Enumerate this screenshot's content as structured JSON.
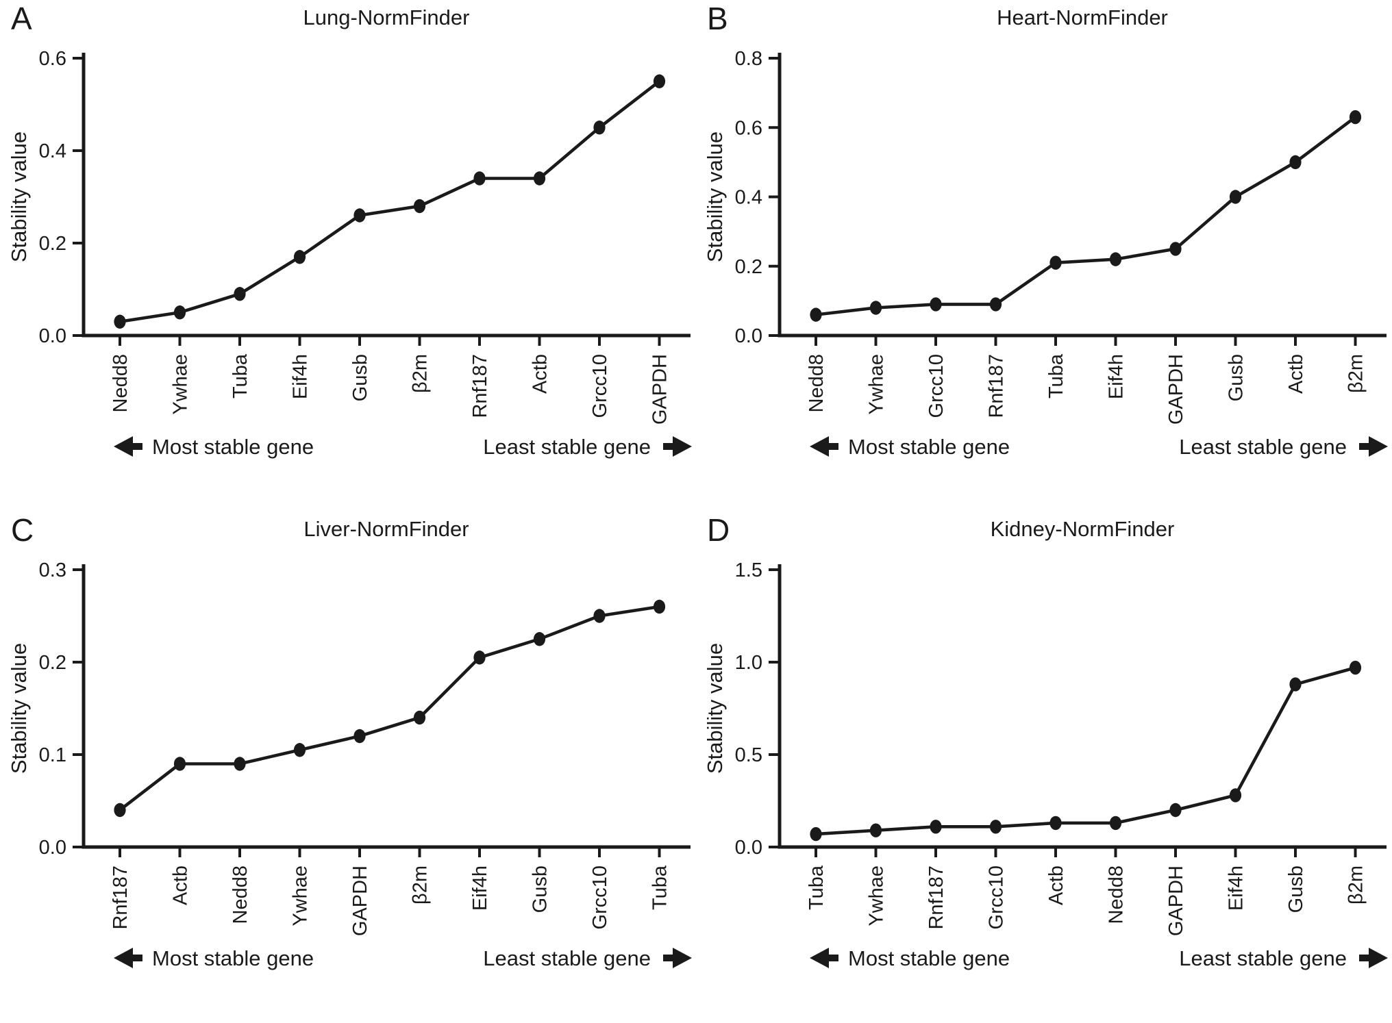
{
  "figure": {
    "background": "#ffffff",
    "ink": "#1a1a1a",
    "arrows": {
      "left": "◄",
      "right": "►"
    }
  },
  "chart_data": [
    {
      "type": "line",
      "panel_letter": "A",
      "title": "Lung-NormFinder",
      "ylabel": "Stability value",
      "xlabel": "",
      "ylim": [
        0,
        0.6
      ],
      "yticks": [
        0.0,
        0.2,
        0.4,
        0.6
      ],
      "categories": [
        "Nedd8",
        "Ywhae",
        "Tuba",
        "Eif4h",
        "Gusb",
        "β2m",
        "Rnf187",
        "Actb",
        "Grcc10",
        "GAPDH"
      ],
      "values": [
        0.03,
        0.05,
        0.09,
        0.17,
        0.26,
        0.28,
        0.34,
        0.34,
        0.45,
        0.55
      ],
      "annotations": {
        "most_stable": "Most stable gene",
        "least_stable": "Least stable gene"
      }
    },
    {
      "type": "line",
      "panel_letter": "B",
      "title": "Heart-NormFinder",
      "ylabel": "Stability value",
      "xlabel": "",
      "ylim": [
        0,
        0.8
      ],
      "yticks": [
        0.0,
        0.2,
        0.4,
        0.6,
        0.8
      ],
      "categories": [
        "Nedd8",
        "Ywhae",
        "Grcc10",
        "Rnf187",
        "Tuba",
        "Eif4h",
        "GAPDH",
        "Gusb",
        "Actb",
        "β2m"
      ],
      "values": [
        0.06,
        0.08,
        0.09,
        0.09,
        0.21,
        0.22,
        0.25,
        0.4,
        0.5,
        0.63
      ],
      "annotations": {
        "most_stable": "Most stable gene",
        "least_stable": "Least stable gene"
      }
    },
    {
      "type": "line",
      "panel_letter": "C",
      "title": "Liver-NormFinder",
      "ylabel": "Stability value",
      "xlabel": "",
      "ylim": [
        0,
        0.3
      ],
      "yticks": [
        0.0,
        0.1,
        0.2,
        0.3
      ],
      "categories": [
        "Rnf187",
        "Actb",
        "Nedd8",
        "Ywhae",
        "GAPDH",
        "β2m",
        "Eif4h",
        "Gusb",
        "Grcc10",
        "Tuba"
      ],
      "values": [
        0.04,
        0.09,
        0.09,
        0.105,
        0.12,
        0.14,
        0.205,
        0.225,
        0.25,
        0.26
      ],
      "annotations": {
        "most_stable": "Most stable gene",
        "least_stable": "Least stable gene"
      }
    },
    {
      "type": "line",
      "panel_letter": "D",
      "title": "Kidney-NormFinder",
      "ylabel": "Stability value",
      "xlabel": "",
      "ylim": [
        0,
        1.5
      ],
      "yticks": [
        0.0,
        0.5,
        1.0,
        1.5
      ],
      "categories": [
        "Tuba",
        "Ywhae",
        "Rnf187",
        "Grcc10",
        "Actb",
        "Nedd8",
        "GAPDH",
        "Eif4h",
        "Gusb",
        "β2m"
      ],
      "values": [
        0.07,
        0.09,
        0.11,
        0.11,
        0.13,
        0.13,
        0.2,
        0.28,
        0.88,
        0.97
      ],
      "annotations": {
        "most_stable": "Most stable gene",
        "least_stable": "Least stable gene"
      }
    }
  ]
}
